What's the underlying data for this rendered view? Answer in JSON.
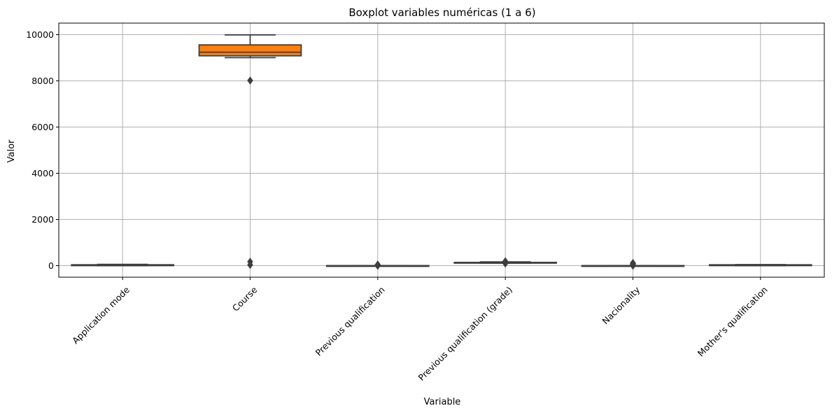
{
  "chart_data": {
    "type": "boxplot",
    "title": "Boxplot variables numéricas (1 a 6)",
    "xlabel": "Variable",
    "ylabel": "Valor",
    "ylim": [
      -500,
      10500
    ],
    "yticks": [
      0,
      2000,
      4000,
      6000,
      8000,
      10000
    ],
    "grid": true,
    "categories": [
      "Application mode",
      "Course",
      "Previous qualification",
      "Previous qualification (grade)",
      "Nacionality",
      "Mother's qualification"
    ],
    "boxes": [
      {
        "category": "Application mode",
        "color": "#1f77b4",
        "whisker_low": 1,
        "q1": 1,
        "median": 17,
        "q3": 39,
        "whisker_high": 57,
        "outliers": []
      },
      {
        "category": "Course",
        "color": "#ff7f0e",
        "whisker_low": 9003,
        "q1": 9085,
        "median": 9238,
        "q3": 9556,
        "whisker_high": 9991,
        "outliers": [
          33,
          171,
          8014
        ]
      },
      {
        "category": "Previous qualification",
        "color": "#2ca02c",
        "whisker_low": 1,
        "q1": 1,
        "median": 1,
        "q3": 1,
        "whisker_high": 1,
        "outliers": [
          2,
          3,
          4,
          5,
          6,
          9,
          10,
          12,
          14,
          15,
          19,
          38,
          39,
          40,
          42,
          43
        ]
      },
      {
        "category": "Previous qualification (grade)",
        "color": "#d62728",
        "whisker_low": 110,
        "q1": 125,
        "median": 133,
        "q3": 140,
        "whisker_high": 162,
        "outliers": [
          95,
          100,
          105,
          165,
          170,
          180,
          190
        ]
      },
      {
        "category": "Nacionality",
        "color": "#9467bd",
        "whisker_low": 1,
        "q1": 1,
        "median": 1,
        "q3": 1,
        "whisker_high": 1,
        "outliers": [
          2,
          6,
          11,
          13,
          14,
          17,
          21,
          22,
          24,
          25,
          26,
          32,
          41,
          62,
          100,
          101,
          103,
          105,
          108,
          109
        ]
      },
      {
        "category": "Mother's qualification",
        "color": "#8c564b",
        "whisker_low": 1,
        "q1": 2,
        "median": 19,
        "q3": 37,
        "whisker_high": 44,
        "outliers": []
      }
    ]
  }
}
